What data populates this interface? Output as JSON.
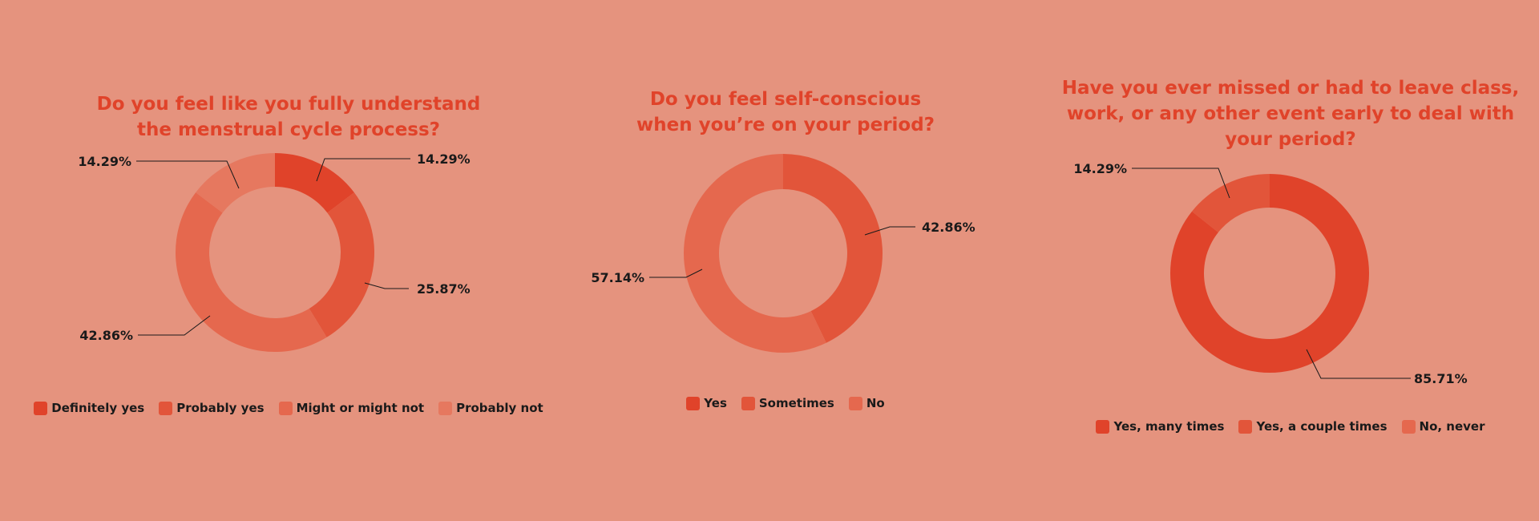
{
  "chart_data": [
    {
      "type": "pie",
      "title": "Do you feel like you fully understand the menstrual cycle process?",
      "title_lines": [
        "Do you feel like you fully understand",
        "the menstrual cycle process?"
      ],
      "categories": [
        "Definitely yes",
        "Probably yes",
        "Might or might not",
        "Probably not"
      ],
      "values": [
        14.29,
        25.87,
        42.86,
        14.29
      ],
      "labels": [
        "14.29%",
        "25.87%",
        "42.86%",
        "14.29%"
      ],
      "colors": [
        "#E0432A",
        "#E2553A",
        "#E5684E",
        "#E6785F"
      ]
    },
    {
      "type": "pie",
      "title": "Do you feel self-conscious when you're on your period?",
      "title_lines": [
        "Do you feel self-conscious",
        "when you’re on your period?"
      ],
      "categories": [
        "Yes",
        "Sometimes",
        "No"
      ],
      "values": [
        0,
        42.86,
        57.14
      ],
      "labels": [
        "",
        "42.86%",
        "57.14%"
      ],
      "colors": [
        "#E0432A",
        "#E2553A",
        "#E5684E"
      ]
    },
    {
      "type": "pie",
      "title": "Have you ever missed or had to leave class, work, or any other event early to deal with your period?",
      "title_lines": [
        "Have you ever missed or had to leave class,",
        "work, or any other event early to deal with",
        "your period?"
      ],
      "categories": [
        "Yes, many times",
        "Yes, a couple times",
        "No, never"
      ],
      "values": [
        85.71,
        14.29,
        0
      ],
      "labels": [
        "85.71%",
        "14.29%",
        ""
      ],
      "colors": [
        "#E0432A",
        "#E2553A",
        "#E5684E"
      ]
    }
  ]
}
